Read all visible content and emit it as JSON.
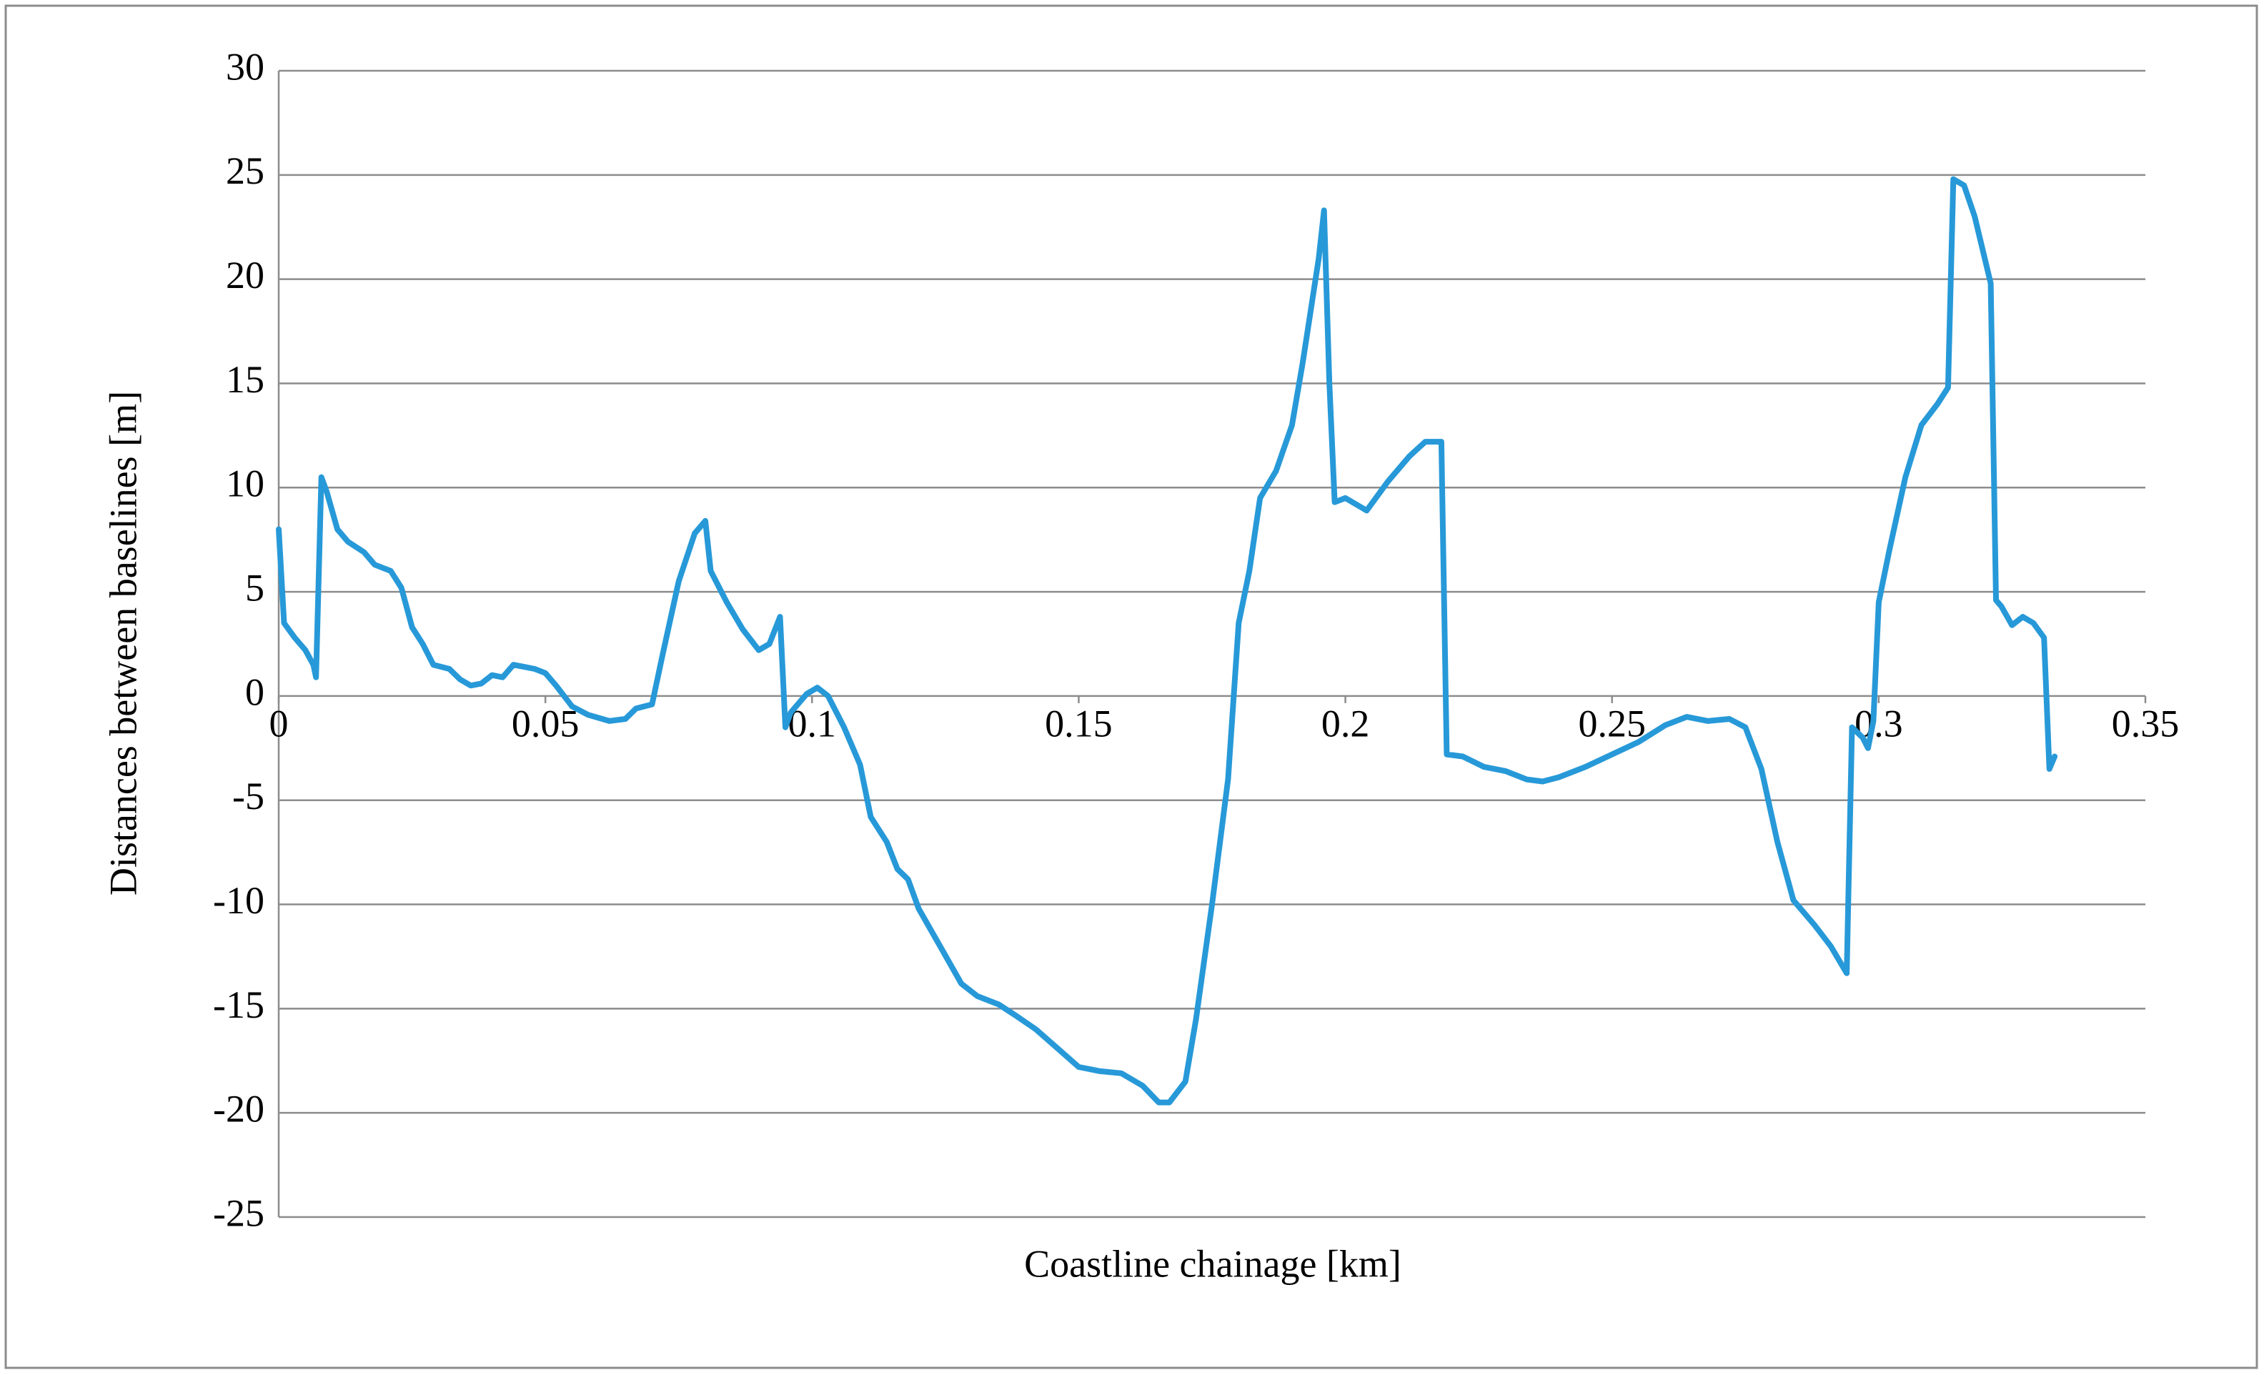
{
  "chart_data": {
    "type": "line",
    "x_label": "Coastline chainage [km]",
    "y_label": "Distances between baselines [m]",
    "xlim": [
      0,
      0.35
    ],
    "xticks": [
      0,
      0.05,
      0.1,
      0.15,
      0.2,
      0.25,
      0.3,
      0.35
    ],
    "ylim": [
      -25,
      30
    ],
    "yticks": [
      -25,
      -20,
      -15,
      -10,
      -5,
      0,
      5,
      10,
      15,
      20,
      25,
      30
    ],
    "grid": true,
    "series": [
      {
        "color": "#2799d8",
        "x": [
          0,
          0.001,
          0.003,
          0.005,
          0.0065,
          0.007,
          0.008,
          0.009,
          0.011,
          0.013,
          0.016,
          0.018,
          0.021,
          0.023,
          0.025,
          0.027,
          0.029,
          0.032,
          0.034,
          0.036,
          0.038,
          0.04,
          0.042,
          0.044,
          0.046,
          0.048,
          0.05,
          0.052,
          0.055,
          0.058,
          0.062,
          0.065,
          0.067,
          0.07,
          0.072,
          0.075,
          0.078,
          0.08,
          0.081,
          0.084,
          0.087,
          0.09,
          0.092,
          0.094,
          0.095,
          0.096,
          0.099,
          0.101,
          0.103,
          0.106,
          0.109,
          0.111,
          0.114,
          0.116,
          0.118,
          0.12,
          0.124,
          0.128,
          0.131,
          0.135,
          0.138,
          0.142,
          0.146,
          0.15,
          0.154,
          0.158,
          0.162,
          0.165,
          0.167,
          0.17,
          0.172,
          0.175,
          0.178,
          0.18,
          0.182,
          0.184,
          0.187,
          0.19,
          0.192,
          0.195,
          0.196,
          0.197,
          0.198,
          0.2,
          0.204,
          0.208,
          0.212,
          0.215,
          0.218,
          0.219,
          0.222,
          0.226,
          0.23,
          0.234,
          0.237,
          0.24,
          0.245,
          0.25,
          0.255,
          0.26,
          0.264,
          0.268,
          0.272,
          0.275,
          0.278,
          0.281,
          0.284,
          0.288,
          0.291,
          0.294,
          0.295,
          0.297,
          0.298,
          0.299,
          0.3,
          0.302,
          0.305,
          0.308,
          0.311,
          0.313,
          0.314,
          0.316,
          0.318,
          0.321,
          0.322,
          0.323,
          0.325,
          0.327,
          0.329,
          0.331,
          0.332,
          0.333
        ],
        "values": [
          8,
          3.5,
          2.8,
          2.2,
          1.5,
          0.9,
          10.5,
          9.8,
          8,
          7.4,
          6.9,
          6.3,
          6,
          5.2,
          3.3,
          2.5,
          1.5,
          1.3,
          0.8,
          0.5,
          0.6,
          1,
          0.9,
          1.5,
          1.4,
          1.3,
          1.1,
          0.5,
          -0.5,
          -0.9,
          -1.2,
          -1.1,
          -0.6,
          -0.4,
          2,
          5.5,
          7.8,
          8.4,
          6,
          4.5,
          3.2,
          2.2,
          2.5,
          3.8,
          -1.5,
          -0.8,
          0.1,
          0.4,
          0,
          -1.5,
          -3.3,
          -5.8,
          -7,
          -8.3,
          -8.8,
          -10.2,
          -12,
          -13.8,
          -14.4,
          -14.8,
          -15.3,
          -16,
          -16.9,
          -17.8,
          -18,
          -18.1,
          -18.7,
          -19.5,
          -19.5,
          -18.5,
          -15.5,
          -10,
          -4,
          3.5,
          6,
          9.5,
          10.8,
          13,
          16,
          21,
          23.3,
          15,
          9.3,
          9.5,
          8.9,
          10.3,
          11.5,
          12.2,
          12.2,
          -2.8,
          -2.9,
          -3.4,
          -3.6,
          -4,
          -4.1,
          -3.9,
          -3.4,
          -2.8,
          -2.2,
          -1.4,
          -1,
          -1.2,
          -1.1,
          -1.5,
          -3.5,
          -7,
          -9.8,
          -11,
          -12,
          -13.3,
          -1.5,
          -2,
          -2.5,
          -1.2,
          4.5,
          7,
          10.5,
          13,
          14,
          14.8,
          24.8,
          24.5,
          23,
          19.8,
          4.6,
          4.3,
          3.4,
          3.8,
          3.5,
          2.8,
          -3.5,
          -2.9
        ]
      }
    ]
  }
}
